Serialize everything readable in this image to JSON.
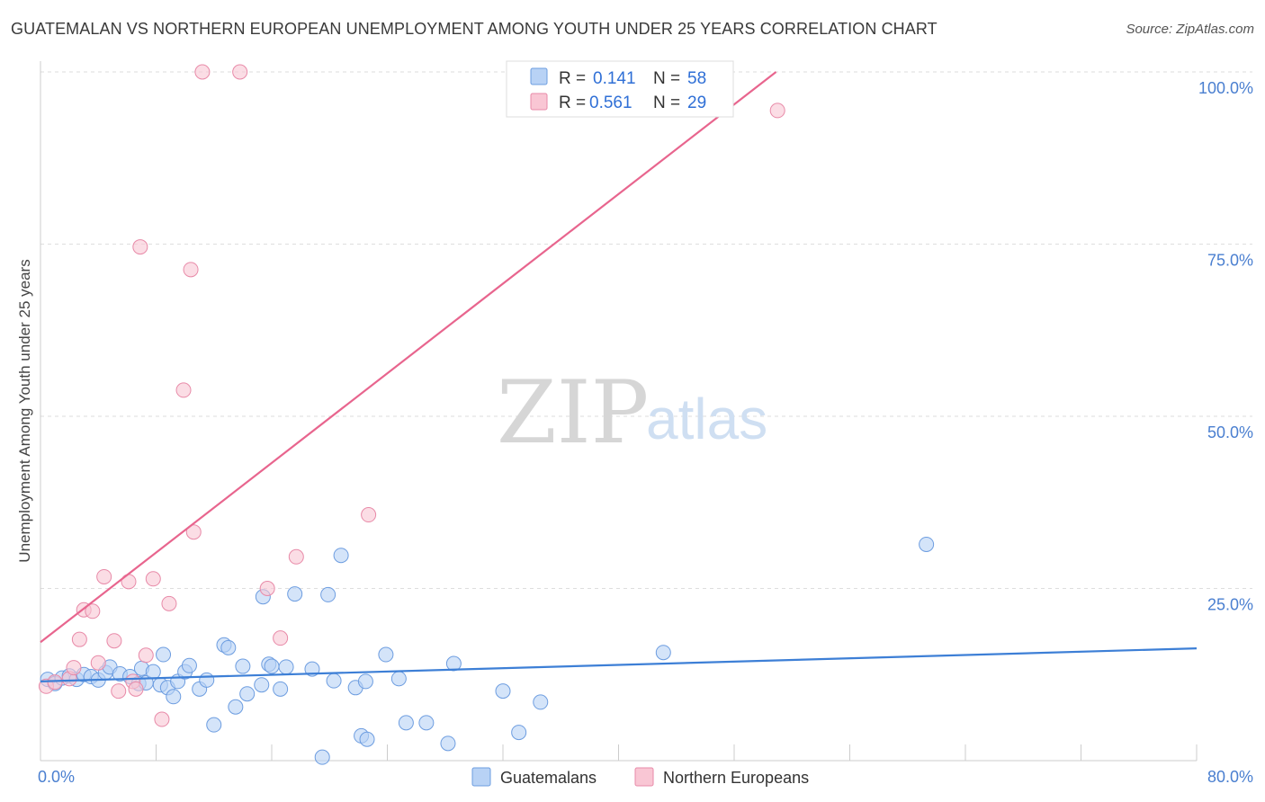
{
  "header": {
    "title": "GUATEMALAN VS NORTHERN EUROPEAN UNEMPLOYMENT AMONG YOUTH UNDER 25 YEARS CORRELATION CHART",
    "source": "Source: ZipAtlas.com"
  },
  "watermark": {
    "zip": "ZIP",
    "atlas": "atlas"
  },
  "legend": {
    "r_label": "R =",
    "n_label": "N =",
    "rows": [
      {
        "series": "Guatemalans",
        "r": "0.141",
        "n": "58",
        "fill": "#b8d2f5",
        "stroke": "#6d9de0"
      },
      {
        "series": "Northern Europeans",
        "r": "0.561",
        "n": "29",
        "fill": "#f9c6d4",
        "stroke": "#e88aa8"
      }
    ]
  },
  "chart_data": {
    "type": "scatter",
    "title": "GUATEMALAN VS NORTHERN EUROPEAN UNEMPLOYMENT AMONG YOUTH UNDER 25 YEARS CORRELATION CHART",
    "xlabel": "",
    "ylabel": "Unemployment Among Youth under 25 years",
    "xlim": [
      0,
      80
    ],
    "ylim": [
      0,
      100
    ],
    "x_tick_labels": [
      {
        "value": 0,
        "label": "0.0%"
      },
      {
        "value": 80,
        "label": "80.0%"
      }
    ],
    "x_minor_ticks": [
      8,
      16,
      24,
      32,
      40,
      48,
      56,
      64,
      72,
      80
    ],
    "y_ticks": [
      {
        "value": 25,
        "label": "25.0%"
      },
      {
        "value": 50,
        "label": "50.0%"
      },
      {
        "value": 75,
        "label": "75.0%"
      },
      {
        "value": 100,
        "label": "100.0%"
      }
    ],
    "grid": true,
    "series": [
      {
        "name": "Guatemalans",
        "color": "#3d7fd6",
        "fill": "#b8d2f5",
        "stroke": "#6d9de0",
        "trendline": {
          "x": [
            0,
            80
          ],
          "y": [
            11.5,
            16.3
          ]
        },
        "points": [
          {
            "x": 0.5,
            "y": 11.8
          },
          {
            "x": 1.0,
            "y": 11.2
          },
          {
            "x": 1.5,
            "y": 12.0
          },
          {
            "x": 2.0,
            "y": 12.3
          },
          {
            "x": 2.5,
            "y": 11.8
          },
          {
            "x": 3.0,
            "y": 12.5
          },
          {
            "x": 3.5,
            "y": 12.2
          },
          {
            "x": 4.0,
            "y": 11.7
          },
          {
            "x": 4.5,
            "y": 12.8
          },
          {
            "x": 4.8,
            "y": 13.6
          },
          {
            "x": 5.5,
            "y": 12.6
          },
          {
            "x": 6.2,
            "y": 12.2
          },
          {
            "x": 6.8,
            "y": 11.2
          },
          {
            "x": 7.0,
            "y": 13.4
          },
          {
            "x": 7.3,
            "y": 11.3
          },
          {
            "x": 7.8,
            "y": 12.9
          },
          {
            "x": 8.3,
            "y": 11.0
          },
          {
            "x": 8.8,
            "y": 10.6
          },
          {
            "x": 8.5,
            "y": 15.4
          },
          {
            "x": 9.2,
            "y": 9.3
          },
          {
            "x": 9.5,
            "y": 11.5
          },
          {
            "x": 10.0,
            "y": 12.9
          },
          {
            "x": 10.3,
            "y": 13.8
          },
          {
            "x": 11.0,
            "y": 10.4
          },
          {
            "x": 11.5,
            "y": 11.7
          },
          {
            "x": 12.0,
            "y": 5.2
          },
          {
            "x": 12.7,
            "y": 16.8
          },
          {
            "x": 13.0,
            "y": 16.4
          },
          {
            "x": 13.5,
            "y": 7.8
          },
          {
            "x": 14.0,
            "y": 13.7
          },
          {
            "x": 14.3,
            "y": 9.7
          },
          {
            "x": 15.3,
            "y": 11.0
          },
          {
            "x": 15.8,
            "y": 14.0
          },
          {
            "x": 16.0,
            "y": 13.7
          },
          {
            "x": 16.6,
            "y": 10.4
          },
          {
            "x": 17.0,
            "y": 13.6
          },
          {
            "x": 15.4,
            "y": 23.8
          },
          {
            "x": 17.6,
            "y": 24.2
          },
          {
            "x": 18.8,
            "y": 13.3
          },
          {
            "x": 19.5,
            "y": 0.5
          },
          {
            "x": 19.9,
            "y": 24.1
          },
          {
            "x": 20.3,
            "y": 11.6
          },
          {
            "x": 20.8,
            "y": 29.8
          },
          {
            "x": 21.8,
            "y": 10.6
          },
          {
            "x": 22.5,
            "y": 11.5
          },
          {
            "x": 22.2,
            "y": 3.6
          },
          {
            "x": 22.6,
            "y": 3.1
          },
          {
            "x": 23.9,
            "y": 15.4
          },
          {
            "x": 24.8,
            "y": 11.9
          },
          {
            "x": 25.3,
            "y": 5.5
          },
          {
            "x": 26.7,
            "y": 5.5
          },
          {
            "x": 28.2,
            "y": 2.5
          },
          {
            "x": 28.6,
            "y": 14.1
          },
          {
            "x": 32.0,
            "y": 10.1
          },
          {
            "x": 33.1,
            "y": 4.1
          },
          {
            "x": 34.6,
            "y": 8.5
          },
          {
            "x": 43.1,
            "y": 15.7
          },
          {
            "x": 61.3,
            "y": 31.4
          }
        ]
      },
      {
        "name": "Northern Europeans",
        "color": "#e8658e",
        "fill": "#f9c6d4",
        "stroke": "#e88aa8",
        "trendline": {
          "x": [
            0,
            50.9
          ],
          "y": [
            17.2,
            100
          ]
        },
        "points": [
          {
            "x": 0.4,
            "y": 10.8
          },
          {
            "x": 1.0,
            "y": 11.4
          },
          {
            "x": 2.0,
            "y": 11.9
          },
          {
            "x": 2.3,
            "y": 13.5
          },
          {
            "x": 2.7,
            "y": 17.6
          },
          {
            "x": 3.0,
            "y": 21.9
          },
          {
            "x": 3.6,
            "y": 21.7
          },
          {
            "x": 4.0,
            "y": 14.2
          },
          {
            "x": 4.4,
            "y": 26.7
          },
          {
            "x": 5.1,
            "y": 17.4
          },
          {
            "x": 5.4,
            "y": 10.1
          },
          {
            "x": 6.1,
            "y": 26.0
          },
          {
            "x": 6.4,
            "y": 11.5
          },
          {
            "x": 6.6,
            "y": 10.4
          },
          {
            "x": 6.9,
            "y": 74.6
          },
          {
            "x": 7.3,
            "y": 15.3
          },
          {
            "x": 7.8,
            "y": 26.4
          },
          {
            "x": 8.4,
            "y": 6.0
          },
          {
            "x": 8.9,
            "y": 22.8
          },
          {
            "x": 9.9,
            "y": 53.8
          },
          {
            "x": 10.4,
            "y": 71.3
          },
          {
            "x": 10.6,
            "y": 33.2
          },
          {
            "x": 11.2,
            "y": 100.0
          },
          {
            "x": 13.8,
            "y": 100.0
          },
          {
            "x": 15.7,
            "y": 25.0
          },
          {
            "x": 16.6,
            "y": 17.8
          },
          {
            "x": 17.7,
            "y": 29.6
          },
          {
            "x": 22.7,
            "y": 35.7
          },
          {
            "x": 51.0,
            "y": 94.4
          }
        ]
      }
    ]
  },
  "bottom_legend": [
    {
      "label": "Guatemalans"
    },
    {
      "label": "Northern Europeans"
    }
  ]
}
